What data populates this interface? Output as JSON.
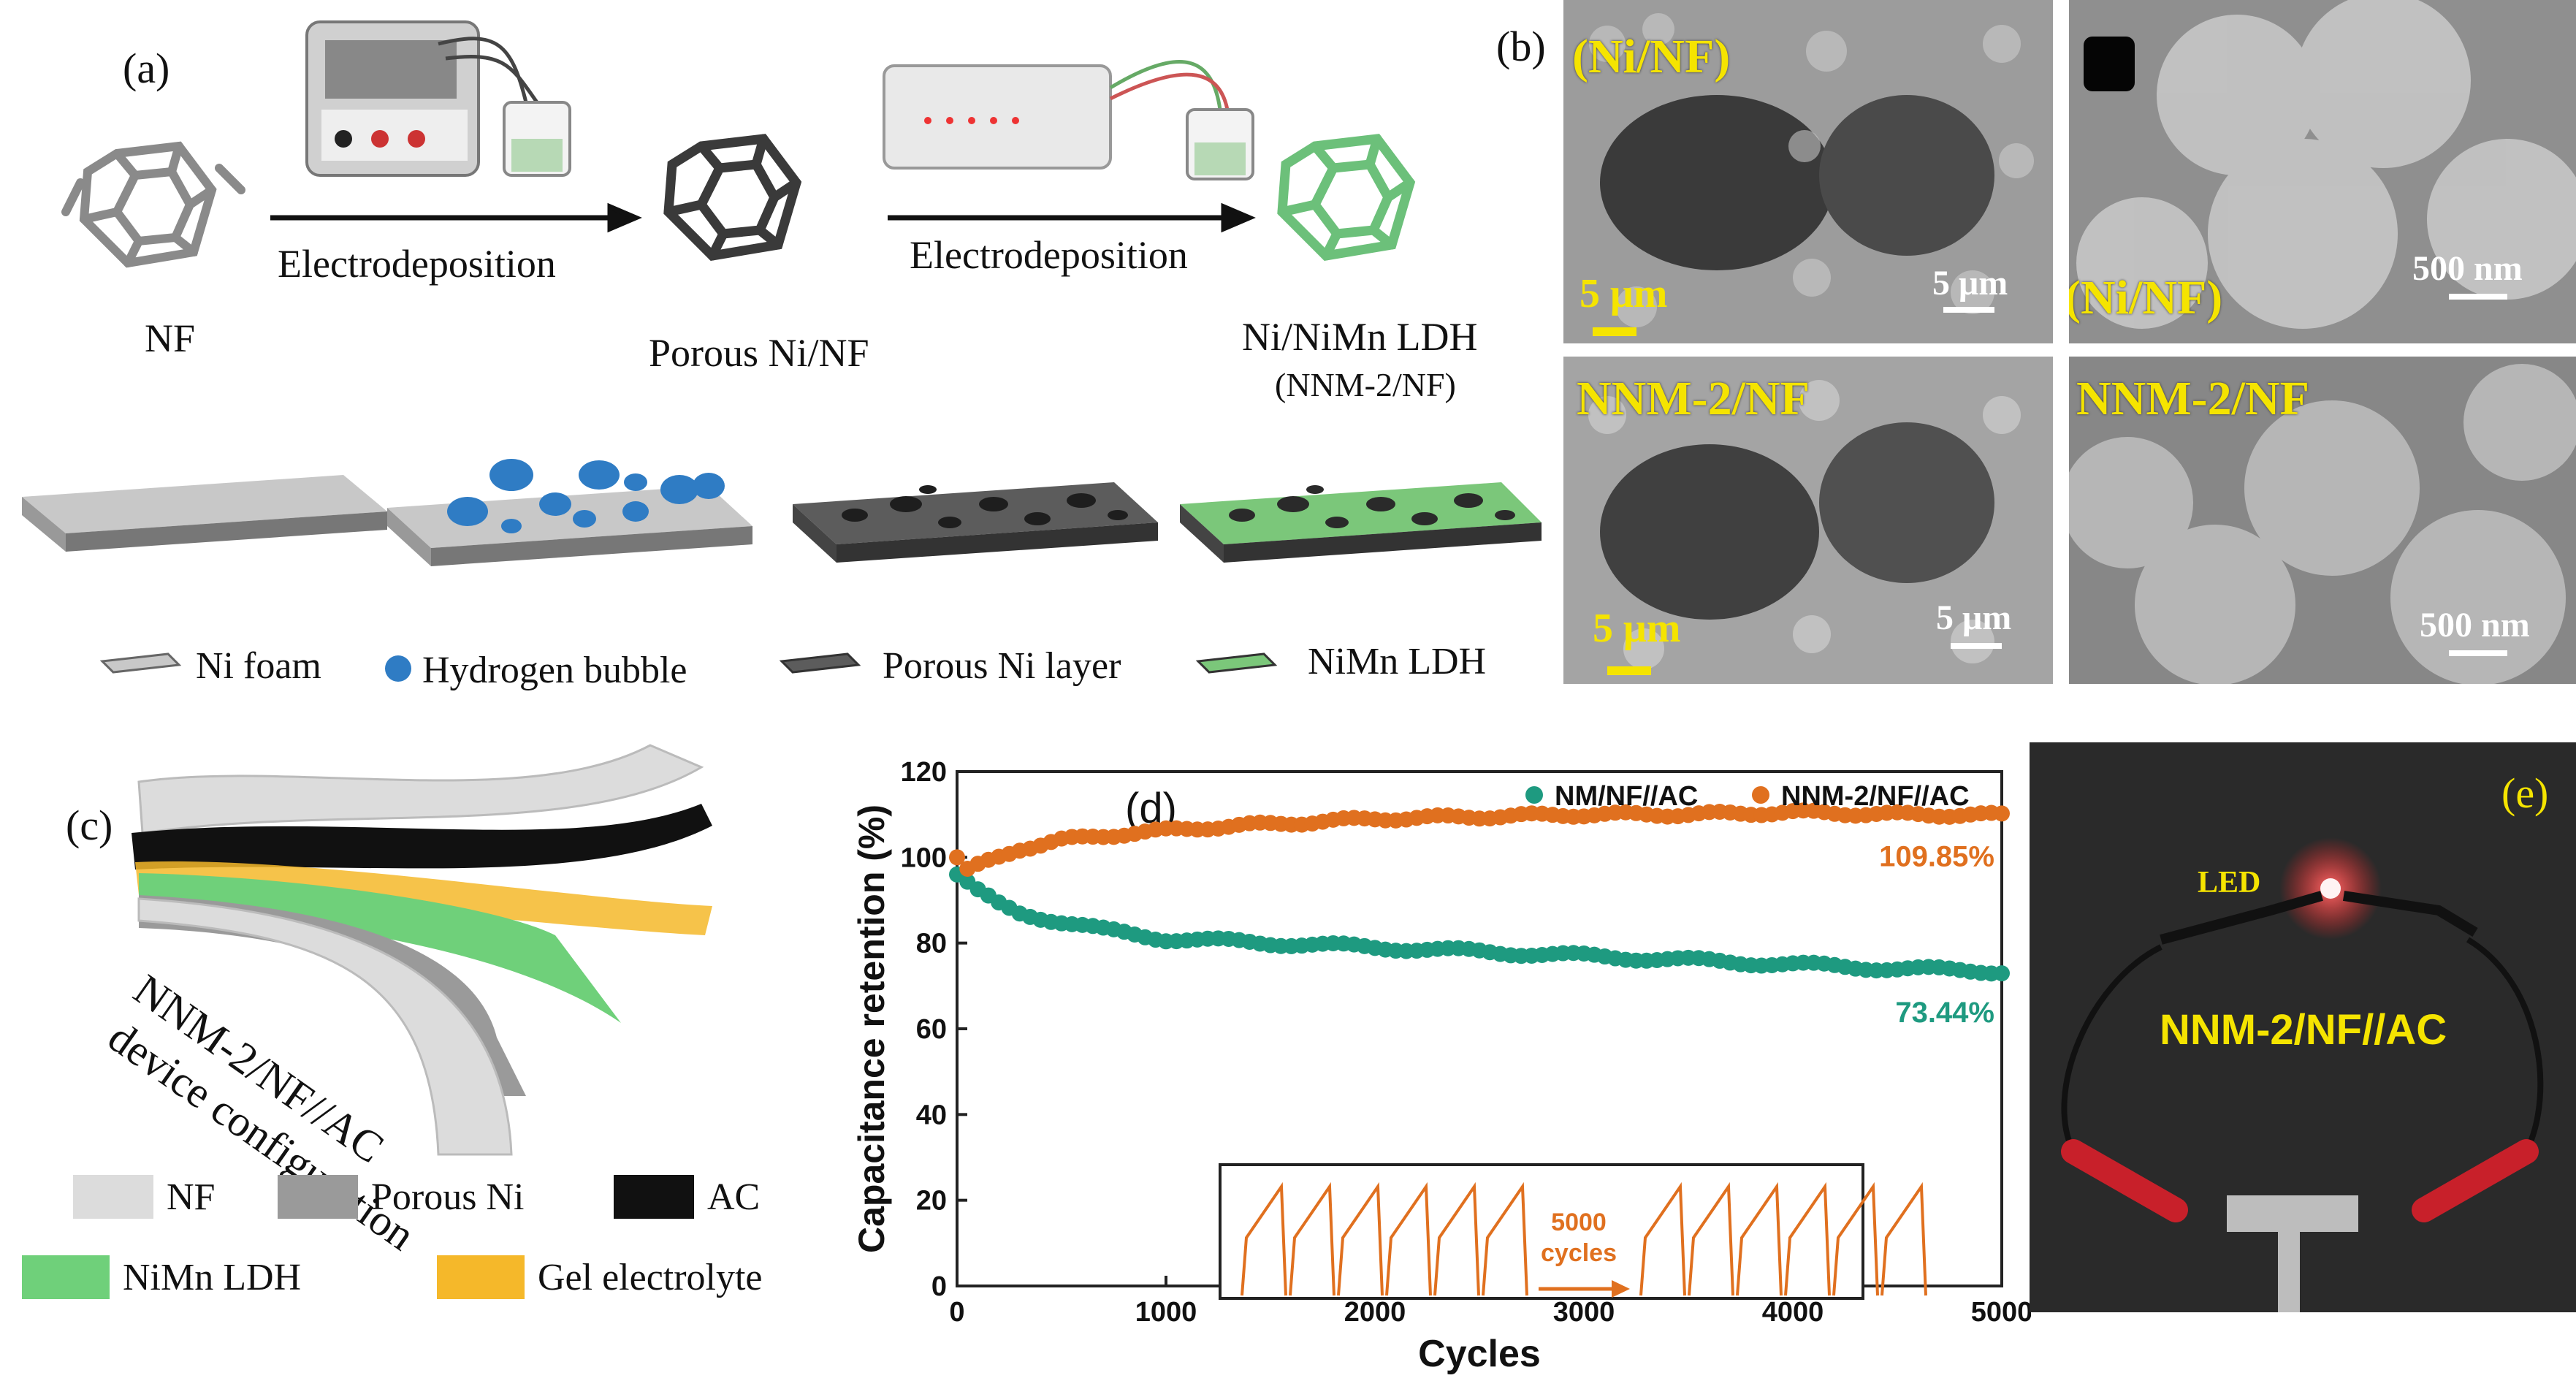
{
  "panels": {
    "a": {
      "label": "(a)",
      "steps": [
        "NF",
        "Porous Ni/NF",
        "Ni/NiMn LDH",
        "(NNM-2/NF)"
      ],
      "arrow_labels": [
        "Electrodeposition",
        "Electrodeposition"
      ],
      "legend": [
        "Ni foam",
        "Hydrogen bubble",
        "Porous Ni layer",
        "NiMn LDH"
      ],
      "colors": {
        "nf_gray": "#9e9e9e",
        "bubble_blue": "#2f7cc4",
        "porous_dark": "#555555",
        "ldh_green": "#7bc77a"
      }
    },
    "b": {
      "label": "(b)",
      "images": [
        {
          "tag": "(Ni/NF)",
          "scale": "5 μm",
          "scale2": "5 μm"
        },
        {
          "tag": "(Ni/NF)",
          "scale": "500 nm"
        },
        {
          "tag": "NNM-2/NF",
          "scale": "5 μm",
          "scale2": "5 μm"
        },
        {
          "tag": "NNM-2/NF",
          "scale": "500 nm"
        }
      ]
    },
    "c": {
      "label": "(c)",
      "caption_line1": "NNM-2/NF//AC",
      "caption_line2": "device configuration",
      "legend": [
        "NF",
        "Porous Ni",
        "AC",
        "NiMn LDH",
        "Gel electrolyte"
      ],
      "colors": {
        "nf": "#dcdcdc",
        "porous": "#9a9a9a",
        "ac": "#111111",
        "ldh": "#6fd07a",
        "gel": "#f5b82a"
      }
    },
    "e": {
      "label": "(e)",
      "led_label": "LED",
      "device_label": "NNM-2/NF//AC"
    }
  },
  "chart_data": {
    "type": "scatter",
    "panel_label": "(d)",
    "xlabel": "Cycles",
    "ylabel": "Capacitance retention (%)",
    "xlim": [
      0,
      5000
    ],
    "ylim": [
      0,
      120
    ],
    "xticks": [
      "0",
      "1000",
      "2000",
      "3000",
      "4000",
      "5000"
    ],
    "yticks": [
      "0",
      "20",
      "40",
      "60",
      "80",
      "100",
      "120"
    ],
    "legend_position": "top-right",
    "series": [
      {
        "name": "NM/NF//AC",
        "color": "#1e9a80",
        "end_label": "73.44%",
        "points": [
          [
            0,
            96
          ],
          [
            100,
            92
          ],
          [
            200,
            89
          ],
          [
            300,
            87
          ],
          [
            400,
            86
          ],
          [
            500,
            85
          ],
          [
            700,
            83
          ],
          [
            1000,
            81
          ],
          [
            1500,
            80
          ],
          [
            2000,
            79
          ],
          [
            2500,
            78
          ],
          [
            3000,
            77
          ],
          [
            3500,
            76
          ],
          [
            4000,
            75
          ],
          [
            4500,
            74
          ],
          [
            5000,
            73.44
          ]
        ]
      },
      {
        "name": "NNM-2/NF//AC",
        "color": "#e0701f",
        "end_label": "109.85%",
        "points": [
          [
            0,
            100
          ],
          [
            50,
            97
          ],
          [
            150,
            99
          ],
          [
            300,
            102
          ],
          [
            500,
            104
          ],
          [
            800,
            105.5
          ],
          [
            1200,
            107
          ],
          [
            1600,
            108
          ],
          [
            2000,
            109
          ],
          [
            2500,
            109.5
          ],
          [
            3000,
            110
          ],
          [
            3500,
            110
          ],
          [
            4000,
            110.5
          ],
          [
            4500,
            110
          ],
          [
            5000,
            109.85
          ]
        ]
      }
    ],
    "inset": {
      "annotation": "5000\ncycles",
      "annotation_line1": "5000",
      "annotation_line2": "cycles",
      "color": "#e0701f"
    }
  }
}
